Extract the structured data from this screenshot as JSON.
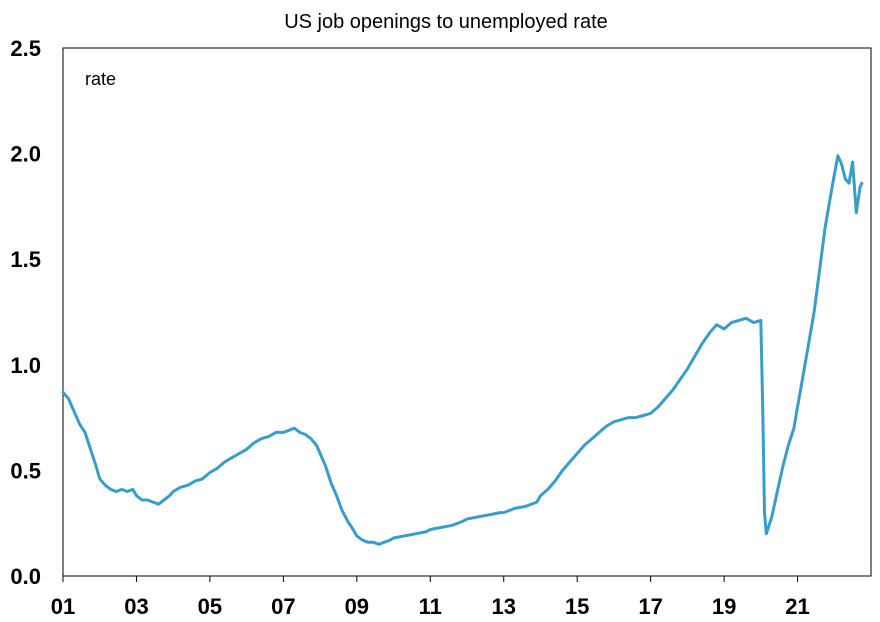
{
  "chart_data": {
    "type": "line",
    "title": "US job openings to unemployed rate",
    "ylabel": "rate",
    "xlabel": "",
    "xlim": [
      2001,
      2023
    ],
    "ylim": [
      0,
      2.5
    ],
    "y_ticks": [
      "0.0",
      "0.5",
      "1.0",
      "1.5",
      "2.0",
      "2.5"
    ],
    "x_ticks": [
      {
        "value": 2001,
        "label": "01"
      },
      {
        "value": 2003,
        "label": "03"
      },
      {
        "value": 2005,
        "label": "05"
      },
      {
        "value": 2007,
        "label": "07"
      },
      {
        "value": 2009,
        "label": "09"
      },
      {
        "value": 2011,
        "label": "11"
      },
      {
        "value": 2013,
        "label": "13"
      },
      {
        "value": 2015,
        "label": "15"
      },
      {
        "value": 2017,
        "label": "17"
      },
      {
        "value": 2019,
        "label": "19"
      },
      {
        "value": 2021,
        "label": "21"
      }
    ],
    "grid": false,
    "line_color": "#3a9cc8",
    "series": [
      {
        "x": [
          2001.0,
          2001.15,
          2001.3,
          2001.45,
          2001.6,
          2001.75,
          2001.9,
          2002.0,
          2002.15,
          2002.3,
          2002.45,
          2002.6,
          2002.75,
          2002.9,
          2003.0,
          2003.15,
          2003.3,
          2003.45,
          2003.6,
          2003.75,
          2003.9,
          2004.0,
          2004.2,
          2004.4,
          2004.6,
          2004.8,
          2005.0,
          2005.2,
          2005.4,
          2005.6,
          2005.8,
          2006.0,
          2006.2,
          2006.4,
          2006.6,
          2006.8,
          2007.0,
          2007.15,
          2007.3,
          2007.45,
          2007.6,
          2007.75,
          2007.9,
          2008.0,
          2008.15,
          2008.3,
          2008.45,
          2008.6,
          2008.75,
          2008.9,
          2009.0,
          2009.15,
          2009.3,
          2009.45,
          2009.6,
          2009.75,
          2009.9,
          2010.0,
          2010.3,
          2010.6,
          2010.9,
          2011.0,
          2011.3,
          2011.6,
          2011.9,
          2012.0,
          2012.3,
          2012.6,
          2012.9,
          2013.0,
          2013.3,
          2013.6,
          2013.9,
          2014.0,
          2014.2,
          2014.4,
          2014.6,
          2014.8,
          2015.0,
          2015.2,
          2015.4,
          2015.6,
          2015.8,
          2016.0,
          2016.2,
          2016.4,
          2016.6,
          2016.8,
          2017.0,
          2017.2,
          2017.4,
          2017.6,
          2017.8,
          2018.0,
          2018.2,
          2018.4,
          2018.6,
          2018.8,
          2019.0,
          2019.2,
          2019.4,
          2019.6,
          2019.8,
          2020.0,
          2020.05,
          2020.1,
          2020.15,
          2020.3,
          2020.45,
          2020.6,
          2020.75,
          2020.9,
          2021.0,
          2021.15,
          2021.3,
          2021.45,
          2021.6,
          2021.75,
          2021.9,
          2022.0,
          2022.1,
          2022.2,
          2022.3,
          2022.4,
          2022.5,
          2022.6,
          2022.7,
          2022.75
        ],
        "y": [
          0.87,
          0.84,
          0.78,
          0.72,
          0.68,
          0.6,
          0.52,
          0.46,
          0.43,
          0.41,
          0.4,
          0.41,
          0.4,
          0.41,
          0.38,
          0.36,
          0.36,
          0.35,
          0.34,
          0.36,
          0.38,
          0.4,
          0.42,
          0.43,
          0.45,
          0.46,
          0.49,
          0.51,
          0.54,
          0.56,
          0.58,
          0.6,
          0.63,
          0.65,
          0.66,
          0.68,
          0.68,
          0.69,
          0.7,
          0.68,
          0.67,
          0.65,
          0.62,
          0.58,
          0.52,
          0.44,
          0.38,
          0.31,
          0.26,
          0.22,
          0.19,
          0.17,
          0.16,
          0.16,
          0.15,
          0.16,
          0.17,
          0.18,
          0.19,
          0.2,
          0.21,
          0.22,
          0.23,
          0.24,
          0.26,
          0.27,
          0.28,
          0.29,
          0.3,
          0.3,
          0.32,
          0.33,
          0.35,
          0.38,
          0.41,
          0.45,
          0.5,
          0.54,
          0.58,
          0.62,
          0.65,
          0.68,
          0.71,
          0.73,
          0.74,
          0.75,
          0.75,
          0.76,
          0.77,
          0.8,
          0.84,
          0.88,
          0.93,
          0.98,
          1.04,
          1.1,
          1.15,
          1.19,
          1.17,
          1.2,
          1.21,
          1.22,
          1.2,
          1.21,
          0.8,
          0.3,
          0.2,
          0.28,
          0.4,
          0.52,
          0.62,
          0.7,
          0.8,
          0.95,
          1.1,
          1.25,
          1.45,
          1.65,
          1.8,
          1.9,
          1.99,
          1.95,
          1.88,
          1.86,
          1.96,
          1.72,
          1.84,
          1.86
        ]
      }
    ]
  }
}
